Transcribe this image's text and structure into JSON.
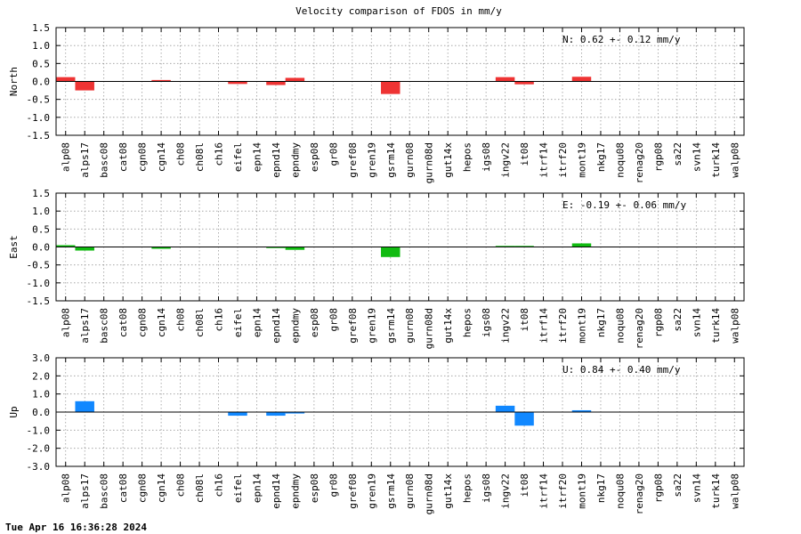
{
  "footer": {
    "timestamp": "Tue Apr 16 16:36:28 2024"
  },
  "chart_data": [
    {
      "type": "bar",
      "title": "Velocity comparison of FDOS in mm/y",
      "ylabel": "North",
      "color": "#ee3333",
      "ylim": [
        -1.5,
        1.5
      ],
      "yticks": [
        1.5,
        1.0,
        0.5,
        0.0,
        -0.5,
        -1.0,
        -1.5
      ],
      "ytick_labels": [
        "1.5",
        "1.0",
        "0.5",
        "0.0",
        "-0.5",
        "-1.0",
        "-1.5"
      ],
      "annotation": "N:   0.62 +-  0.12 mm/y",
      "grid": true,
      "categories": [
        "alp08",
        "alps17",
        "basc08",
        "cat08",
        "cgn08",
        "cgn14",
        "ch08",
        "ch08l",
        "ch16",
        "eifel",
        "epn14",
        "epnd14",
        "epndmy",
        "esp08",
        "gr08",
        "gref08",
        "gren19",
        "gsrm14",
        "gurn08",
        "gurn08d",
        "gut14x",
        "hepos",
        "igs08",
        "ingv22",
        "it08",
        "itrf14",
        "itrf20",
        "mont19",
        "nkg17",
        "noqu08",
        "renag20",
        "rgp08",
        "sa22",
        "svn14",
        "turk14",
        "walp08"
      ],
      "values": [
        0.12,
        -0.25,
        0,
        0,
        0,
        0.04,
        0,
        0,
        0,
        -0.07,
        0,
        -0.1,
        0.1,
        0,
        0,
        0,
        0,
        -0.35,
        0,
        0,
        0,
        0,
        0,
        0.12,
        -0.08,
        0,
        0,
        0.13,
        0,
        0,
        0,
        0,
        0,
        0,
        0,
        0
      ]
    },
    {
      "type": "bar",
      "title": "",
      "ylabel": "East",
      "color": "#11bb11",
      "ylim": [
        -1.5,
        1.5
      ],
      "yticks": [
        1.5,
        1.0,
        0.5,
        0.0,
        -0.5,
        -1.0,
        -1.5
      ],
      "ytick_labels": [
        "1.5",
        "1.0",
        "0.5",
        "0.0",
        "-0.5",
        "-1.0",
        "-1.5"
      ],
      "annotation": "E:  -0.19 +-  0.06 mm/y",
      "grid": true,
      "categories": [
        "alp08",
        "alps17",
        "basc08",
        "cat08",
        "cgn08",
        "cgn14",
        "ch08",
        "ch08l",
        "ch16",
        "eifel",
        "epn14",
        "epnd14",
        "epndmy",
        "esp08",
        "gr08",
        "gref08",
        "gren19",
        "gsrm14",
        "gurn08",
        "gurn08d",
        "gut14x",
        "hepos",
        "igs08",
        "ingv22",
        "it08",
        "itrf14",
        "itrf20",
        "mont19",
        "nkg17",
        "noqu08",
        "renag20",
        "rgp08",
        "sa22",
        "svn14",
        "turk14",
        "walp08"
      ],
      "values": [
        0.05,
        -0.1,
        0,
        0,
        0,
        -0.05,
        0,
        0,
        0,
        0,
        0,
        -0.03,
        -0.08,
        0,
        0,
        0,
        0,
        -0.28,
        0,
        0,
        0,
        0,
        0,
        0.03,
        0.03,
        0,
        0,
        0.1,
        0,
        0,
        0,
        0,
        0,
        0,
        0,
        0
      ]
    },
    {
      "type": "bar",
      "title": "",
      "ylabel": "Up",
      "color": "#1188ff",
      "ylim": [
        -3.0,
        3.0
      ],
      "yticks": [
        3.0,
        2.0,
        1.0,
        0.0,
        -1.0,
        -2.0,
        -3.0
      ],
      "ytick_labels": [
        "3.0",
        "2.0",
        "1.0",
        "0.0",
        "-1.0",
        "-2.0",
        "-3.0"
      ],
      "annotation": "U:   0.84 +-  0.40 mm/y",
      "grid": true,
      "categories": [
        "alp08",
        "alps17",
        "basc08",
        "cat08",
        "cgn08",
        "cgn14",
        "ch08",
        "ch08l",
        "ch16",
        "eifel",
        "epn14",
        "epnd14",
        "epndmy",
        "esp08",
        "gr08",
        "gref08",
        "gren19",
        "gsrm14",
        "gurn08",
        "gurn08d",
        "gut14x",
        "hepos",
        "igs08",
        "ingv22",
        "it08",
        "itrf14",
        "itrf20",
        "mont19",
        "nkg17",
        "noqu08",
        "renag20",
        "rgp08",
        "sa22",
        "svn14",
        "turk14",
        "walp08"
      ],
      "values": [
        0,
        0.6,
        0,
        0,
        0,
        0,
        0,
        0,
        0,
        -0.2,
        0,
        -0.2,
        -0.08,
        0,
        0,
        0,
        0,
        0,
        0,
        0,
        0,
        0,
        0,
        0.35,
        -0.75,
        0,
        0,
        0.1,
        0,
        0,
        0,
        0,
        0,
        0,
        0,
        0
      ]
    }
  ]
}
